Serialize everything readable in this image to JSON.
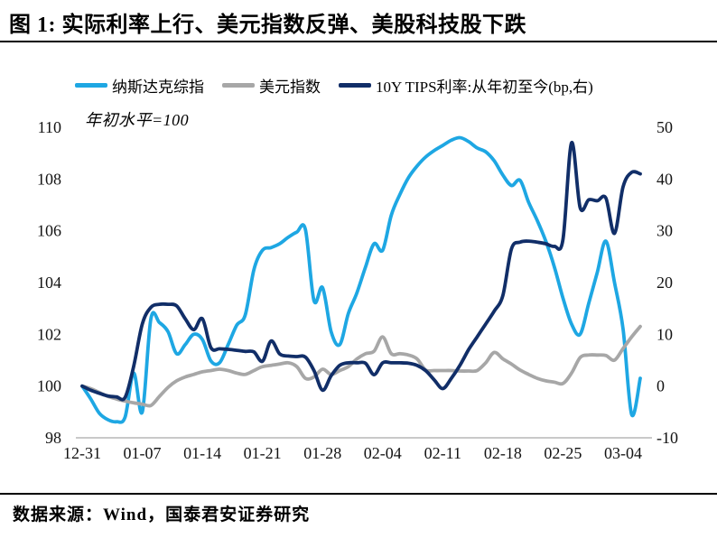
{
  "title": "图 1:  实际利率上行、美元指数反弹、美股科技股下跌",
  "annotation": "年初水平=100",
  "footer": "数据来源：Wind，国泰君安证券研究",
  "colors": {
    "nasdaq": "#1EA7E3",
    "usd_index": "#A7A7A7",
    "tips": "#112E68",
    "axis_line": "#C9C9C9",
    "text": "#000000"
  },
  "legend": [
    {
      "id": "nasdaq",
      "label": "纳斯达克综指",
      "color": "#1EA7E3"
    },
    {
      "id": "usd-index",
      "label": "美元指数",
      "color": "#A7A7A7"
    },
    {
      "id": "tips",
      "label": "10Y TIPS利率:从年初至今(bp,右)",
      "color": "#112E68"
    }
  ],
  "chart_data": {
    "type": "line",
    "title": "实际利率上行、美元指数反弹、美股科技股下跌",
    "xlabel": "",
    "ylabel_left": "年初水平=100",
    "ylabel_right": "bp",
    "grid": false,
    "legend_position": "top",
    "x": [
      "12-31",
      "01-01",
      "01-02",
      "01-03",
      "01-04",
      "01-05",
      "01-06",
      "01-07",
      "01-08",
      "01-09",
      "01-10",
      "01-11",
      "01-12",
      "01-13",
      "01-14",
      "01-15",
      "01-16",
      "01-17",
      "01-18",
      "01-19",
      "01-20",
      "01-21",
      "01-22",
      "01-23",
      "01-24",
      "01-25",
      "01-26",
      "01-27",
      "01-28",
      "01-29",
      "01-30",
      "01-31",
      "02-01",
      "02-02",
      "02-03",
      "02-04",
      "02-05",
      "02-06",
      "02-07",
      "02-08",
      "02-09",
      "02-10",
      "02-11",
      "02-12",
      "02-13",
      "02-14",
      "02-15",
      "02-16",
      "02-17",
      "02-18",
      "02-19",
      "02-20",
      "02-21",
      "02-22",
      "02-23",
      "02-24",
      "02-25",
      "02-26",
      "02-27",
      "02-28",
      "03-01",
      "03-02",
      "03-03",
      "03-04",
      "03-05",
      "03-06"
    ],
    "x_ticks": [
      "12-31",
      "01-07",
      "01-14",
      "01-21",
      "01-28",
      "02-04",
      "02-11",
      "02-18",
      "02-25",
      "03-04"
    ],
    "x_tick_interval": 7,
    "left_axis": {
      "range": [
        98,
        110
      ],
      "ticks": [
        110,
        108,
        106,
        104,
        102,
        100,
        98
      ]
    },
    "right_axis": {
      "range": [
        -10,
        50
      ],
      "ticks": [
        50,
        40,
        30,
        20,
        10,
        0,
        -10
      ]
    },
    "series": [
      {
        "id": "nasdaq",
        "name": "纳斯达克综指",
        "axis": "left",
        "color": "#1EA7E3",
        "values": [
          100,
          99.5,
          98.95,
          98.7,
          98.62,
          98.8,
          100.5,
          99,
          102.6,
          102.45,
          102.1,
          101.25,
          101.6,
          102,
          101.8,
          100.97,
          100.9,
          101.6,
          102.35,
          102.75,
          104.5,
          105.25,
          105.35,
          105.5,
          105.75,
          105.95,
          106.05,
          103.3,
          103.8,
          102.1,
          101.6,
          102.8,
          103.6,
          104.6,
          105.5,
          105.25,
          106.6,
          107.4,
          108.05,
          108.5,
          108.85,
          109.1,
          109.3,
          109.5,
          109.6,
          109.45,
          109.2,
          109.05,
          108.7,
          108.15,
          107.75,
          107.95,
          107.1,
          106.4,
          105.6,
          104.6,
          103.4,
          102.4,
          102,
          103.2,
          104.4,
          105.6,
          104,
          102.2,
          98.9,
          100.3
        ]
      },
      {
        "id": "usd-index",
        "name": "美元指数",
        "axis": "left",
        "color": "#A7A7A7",
        "values": [
          100,
          99.9,
          99.75,
          99.6,
          99.5,
          99.42,
          99.35,
          99.3,
          99.25,
          99.6,
          99.95,
          100.2,
          100.35,
          100.45,
          100.55,
          100.6,
          100.65,
          100.6,
          100.5,
          100.45,
          100.6,
          100.75,
          100.8,
          100.85,
          100.9,
          100.75,
          100.3,
          100.35,
          100.65,
          100.45,
          100.6,
          100.75,
          101.05,
          101.25,
          101.35,
          101.9,
          101.25,
          101.25,
          101.2,
          101.05,
          100.62,
          100.6,
          100.6,
          100.6,
          100.58,
          100.58,
          100.6,
          100.9,
          101.3,
          101.05,
          100.85,
          100.62,
          100.45,
          100.3,
          100.2,
          100.15,
          100.1,
          100.5,
          101.1,
          101.2,
          101.2,
          101.18,
          101,
          101.45,
          101.9,
          102.3
        ]
      },
      {
        "id": "tips",
        "name": "10Y TIPS利率:从年初至今(bp,右)",
        "axis": "right",
        "color": "#112E68",
        "values": [
          0,
          -0.8,
          -1.4,
          -1.9,
          -2.1,
          -2.2,
          3.8,
          12,
          15.2,
          15.8,
          15.8,
          15.5,
          13,
          10.9,
          13,
          7.4,
          7.2,
          7.1,
          6.9,
          6.7,
          6.6,
          4.8,
          8.7,
          6.2,
          5.8,
          5.7,
          5.6,
          3,
          -0.8,
          2,
          4,
          4.5,
          4.5,
          4.4,
          2.2,
          4.5,
          4.5,
          4.5,
          4.4,
          4,
          3,
          1.2,
          -0.5,
          1.5,
          4,
          7,
          9.5,
          12,
          14.5,
          17.5,
          26.5,
          27.8,
          28,
          27.8,
          27.5,
          27,
          28.3,
          47,
          34.5,
          36,
          35.8,
          36.3,
          29.5,
          38.5,
          41.3,
          41
        ]
      }
    ]
  }
}
